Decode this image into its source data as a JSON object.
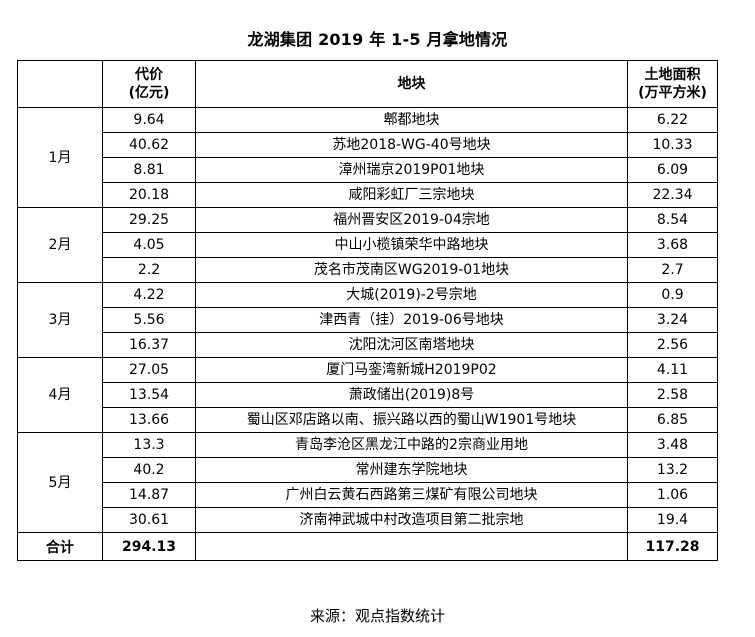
{
  "title": "龙湖集团 2019 年 1-5 月拿地情况",
  "headers": {
    "blank": "",
    "price_line1": "代价",
    "price_line2": "(亿元)",
    "plot": "地块",
    "area_line1": "土地面积",
    "area_line2": "(万平方米)"
  },
  "groups": [
    {
      "month": "1月",
      "rows": [
        {
          "price": "9.64",
          "plot": "郫都地块",
          "area": "6.22"
        },
        {
          "price": "40.62",
          "plot": "苏地2018-WG-40号地块",
          "area": "10.33"
        },
        {
          "price": "8.81",
          "plot": "漳州瑞京2019P01地块",
          "area": "6.09"
        },
        {
          "price": "20.18",
          "plot": "咸阳彩虹厂三宗地块",
          "area": "22.34"
        }
      ]
    },
    {
      "month": "2月",
      "rows": [
        {
          "price": "29.25",
          "plot": "福州晋安区2019-04宗地",
          "area": "8.54"
        },
        {
          "price": "4.05",
          "plot": "中山小榄镇荣华中路地块",
          "area": "3.68"
        },
        {
          "price": "2.2",
          "plot": "茂名市茂南区WG2019-01地块",
          "area": "2.7"
        }
      ]
    },
    {
      "month": "3月",
      "rows": [
        {
          "price": "4.22",
          "plot": "大城(2019)-2号宗地",
          "area": "0.9"
        },
        {
          "price": "5.56",
          "plot": "津西青（挂）2019-06号地块",
          "area": "3.24"
        },
        {
          "price": "16.37",
          "plot": "沈阳沈河区南塔地块",
          "area": "2.56"
        }
      ]
    },
    {
      "month": "4月",
      "rows": [
        {
          "price": "27.05",
          "plot": "厦门马銮湾新城H2019P02",
          "area": "4.11"
        },
        {
          "price": "13.54",
          "plot": "萧政储出(2019)8号",
          "area": "2.58"
        },
        {
          "price": "13.66",
          "plot": "蜀山区邓店路以南、振兴路以西的蜀山W1901号地块",
          "area": "6.85"
        }
      ]
    },
    {
      "month": "5月",
      "rows": [
        {
          "price": "13.3",
          "plot": "青岛李沧区黑龙江中路的2宗商业用地",
          "area": "3.48"
        },
        {
          "price": "40.2",
          "plot": "常州建东学院地块",
          "area": "13.2"
        },
        {
          "price": "14.87",
          "plot": "广州白云黄石西路第三煤矿有限公司地块",
          "area": "1.06"
        },
        {
          "price": "30.61",
          "plot": "济南神武城中村改造项目第二批宗地",
          "area": "19.4"
        }
      ]
    }
  ],
  "total": {
    "label": "合计",
    "price": "294.13",
    "plot": "",
    "area": "117.28"
  },
  "source": "来源：观点指数统计"
}
